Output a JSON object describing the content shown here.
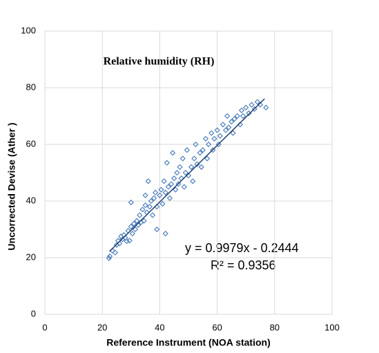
{
  "chart_data": {
    "type": "scatter",
    "title": "Relative humidity (RH)",
    "x_label": "Reference Instrument (NOA station)",
    "y_label": "Uncorrected Devise (Ather )",
    "equation": "y = 0.9979x - 0.2444",
    "r_squared": "R² = 0.9356",
    "xlim": [
      0,
      100
    ],
    "ylim": [
      0,
      100
    ],
    "xticks": [
      0,
      20,
      40,
      60,
      80,
      100
    ],
    "yticks": [
      0,
      20,
      40,
      60,
      80,
      100
    ],
    "grid": true,
    "color": "#4f81bd",
    "trend_color": "#1f3f6e",
    "x": [
      22.3,
      22.6,
      23.5,
      24.5,
      25,
      25.5,
      26,
      26.5,
      27,
      27.5,
      28,
      28.5,
      29,
      29.5,
      30,
      30,
      30.5,
      31,
      31.5,
      32,
      32.5,
      33,
      33.5,
      34,
      34.5,
      35,
      35,
      35.5,
      36,
      36.5,
      37,
      37.5,
      38,
      38.5,
      39,
      39,
      40,
      40.5,
      41,
      41.5,
      42,
      42,
      42.5,
      43,
      43.5,
      44,
      44.5,
      45,
      45.5,
      46,
      46.5,
      47,
      47.5,
      48,
      48.5,
      49,
      49.5,
      50,
      51,
      51.5,
      52,
      52.5,
      53,
      54,
      54.5,
      55,
      56,
      56.5,
      57,
      58,
      58.5,
      59,
      60,
      60.5,
      61,
      62,
      63,
      63.5,
      64,
      65,
      65.5,
      66,
      67,
      68,
      68.5,
      69,
      70,
      71,
      72,
      73,
      74,
      75,
      77
    ],
    "y": [
      19.8,
      20.5,
      22.5,
      21.8,
      24.5,
      26,
      25,
      27.5,
      26.5,
      28,
      27,
      25.8,
      29.5,
      26,
      39.5,
      31,
      28.5,
      32,
      30,
      33,
      31.5,
      35,
      32.5,
      37,
      33,
      38.5,
      42,
      36,
      47,
      38,
      40,
      35,
      41,
      43,
      38,
      30,
      42,
      44,
      39,
      47,
      28.5,
      43,
      53.5,
      45,
      41,
      46,
      57,
      48,
      44,
      50,
      46,
      52,
      48,
      55,
      45,
      50,
      58,
      49,
      52,
      47,
      55,
      60,
      53,
      57,
      52,
      58,
      62,
      55,
      60,
      64,
      58,
      62,
      65,
      60,
      63,
      67,
      65,
      70,
      66,
      68,
      64,
      69,
      70,
      67,
      72,
      70,
      73,
      71,
      74,
      72.5,
      75,
      74,
      73
    ],
    "trendline": {
      "x": [
        22.5,
        76.5
      ],
      "y": [
        22.2,
        76.1
      ]
    }
  }
}
